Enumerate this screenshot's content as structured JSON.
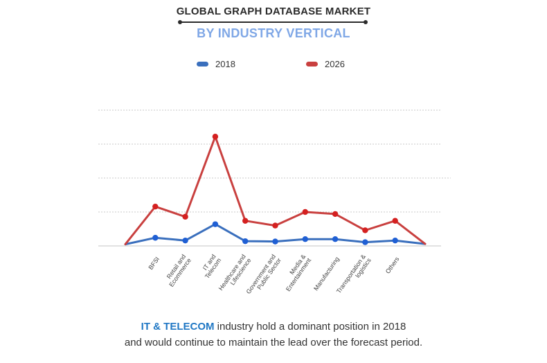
{
  "header": {
    "title": "GLOBAL GRAPH DATABASE MARKET",
    "subtitle": "BY INDUSTRY VERTICAL"
  },
  "legend": [
    {
      "label": "2018",
      "color": "#3a6fbd"
    },
    {
      "label": "2026",
      "color": "#c9403f"
    }
  ],
  "chart_data": {
    "type": "line",
    "categories": [
      "",
      "BFSI",
      "Retail and Ecommerce",
      "IT and Telecom",
      "Healthcare and Lifescience",
      "Government and Public Sector",
      "Media & Entertainment",
      "Manufacturing",
      "Transportation & logistics",
      "Others",
      ""
    ],
    "series": [
      {
        "name": "2018",
        "color": "#3a6fbd",
        "marker_color": "#1f5fd4",
        "values": [
          0.5,
          2.4,
          1.6,
          6.4,
          1.4,
          1.3,
          2.0,
          2.0,
          1.1,
          1.6,
          0.6
        ]
      },
      {
        "name": "2026",
        "color": "#c9403f",
        "marker_color": "#d42020",
        "values": [
          0.5,
          11.6,
          8.6,
          32.2,
          7.4,
          6.0,
          10.0,
          9.4,
          4.6,
          7.4,
          0.6
        ]
      }
    ],
    "ylim": [
      0,
      40
    ],
    "gridlines": [
      0,
      10,
      20,
      30,
      40
    ],
    "grid": true,
    "legend_position": "top",
    "xlabel": "",
    "ylabel": ""
  },
  "caption": {
    "highlight": "IT & TELECOM",
    "line1_rest": " industry hold a dominant position in 2018",
    "line2": "and would continue to maintain the lead over the forecast period."
  }
}
